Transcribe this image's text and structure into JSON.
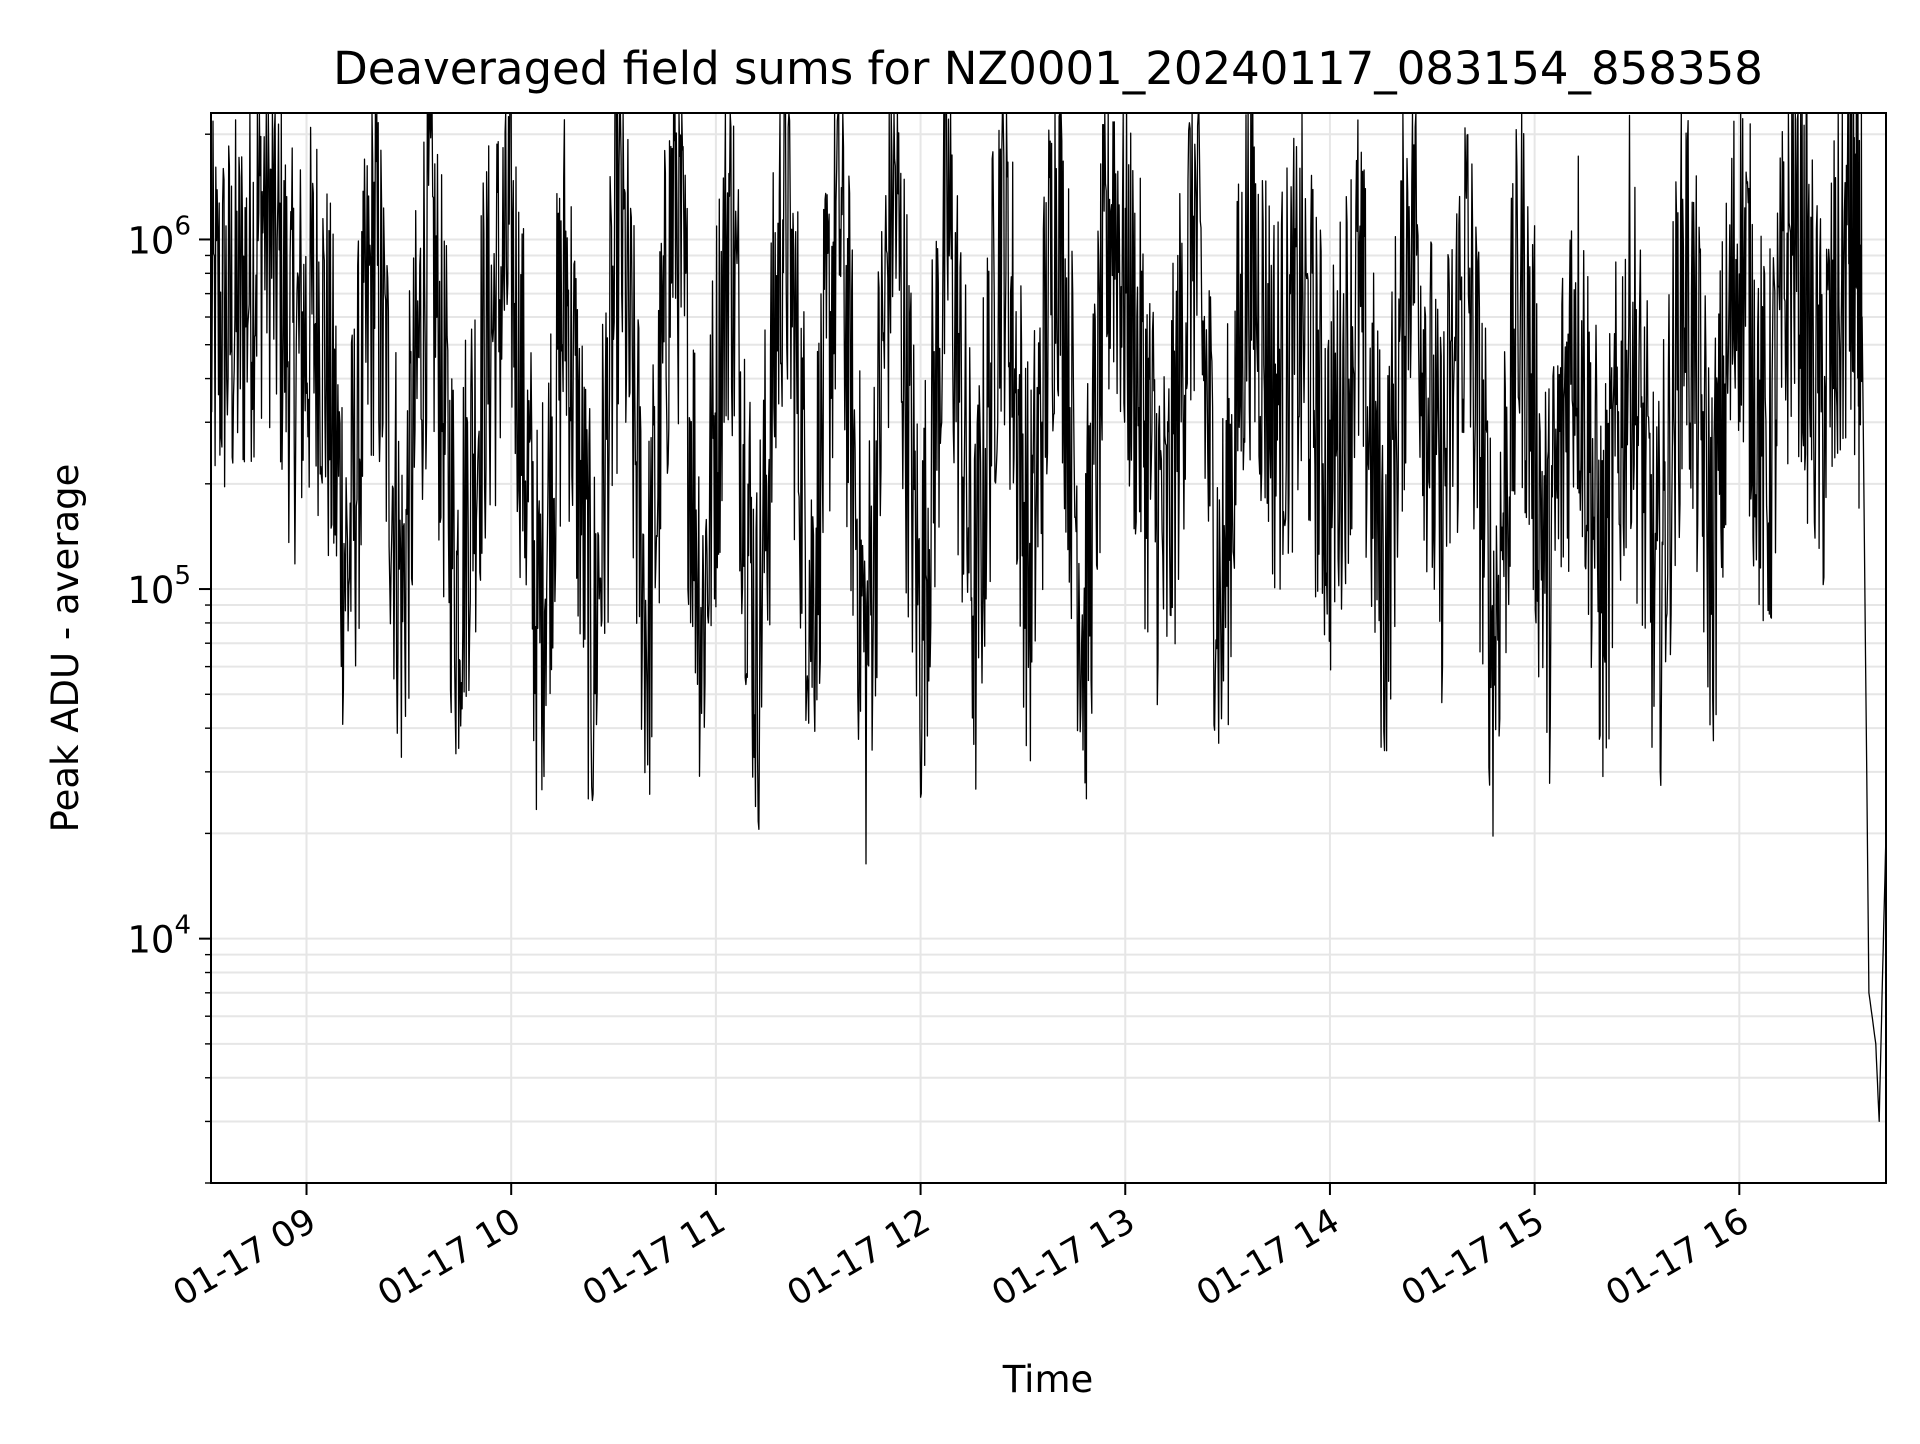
{
  "chart_data": {
    "type": "line",
    "title": "Deaveraged field sums for NZ0001_20240117_083154_858358",
    "xlabel": "Time",
    "ylabel": "Peak ADU - average",
    "y_scale": "log",
    "ylim": [
      2000,
      2300000
    ],
    "xlim": [
      "2024-01-17 08:32",
      "2024-01-17 16:43"
    ],
    "x_ticks": [
      "01-17 09",
      "01-17 10",
      "01-17 11",
      "01-17 12",
      "01-17 13",
      "01-17 14",
      "01-17 15",
      "01-17 16"
    ],
    "y_ticks": [
      {
        "base": "10",
        "exp": "4",
        "value": 10000
      },
      {
        "base": "10",
        "exp": "5",
        "value": 100000
      },
      {
        "base": "10",
        "exp": "6",
        "value": 1000000
      }
    ],
    "grid": true,
    "line_color": "#000000",
    "series": [
      {
        "x": [
          "2024-01-17 08:32",
          "2024-01-17 08:40",
          "2024-01-17 08:48",
          "2024-01-17 08:56",
          "2024-01-17 09:04",
          "2024-01-17 09:12",
          "2024-01-17 09:20",
          "2024-01-17 09:28",
          "2024-01-17 09:36",
          "2024-01-17 09:44",
          "2024-01-17 09:52",
          "2024-01-17 10:00",
          "2024-01-17 10:08",
          "2024-01-17 10:16",
          "2024-01-17 10:24",
          "2024-01-17 10:32",
          "2024-01-17 10:40",
          "2024-01-17 10:48",
          "2024-01-17 10:56",
          "2024-01-17 11:04",
          "2024-01-17 11:12",
          "2024-01-17 11:20",
          "2024-01-17 11:28",
          "2024-01-17 11:36",
          "2024-01-17 11:44",
          "2024-01-17 11:52",
          "2024-01-17 12:00",
          "2024-01-17 12:08",
          "2024-01-17 12:16",
          "2024-01-17 12:24",
          "2024-01-17 12:32",
          "2024-01-17 12:40",
          "2024-01-17 12:48",
          "2024-01-17 12:56",
          "2024-01-17 13:04",
          "2024-01-17 13:12",
          "2024-01-17 13:20",
          "2024-01-17 13:28",
          "2024-01-17 13:36",
          "2024-01-17 13:44",
          "2024-01-17 13:52",
          "2024-01-17 14:00",
          "2024-01-17 14:08",
          "2024-01-17 14:16",
          "2024-01-17 14:24",
          "2024-01-17 14:32",
          "2024-01-17 14:40",
          "2024-01-17 14:48",
          "2024-01-17 14:56",
          "2024-01-17 15:04",
          "2024-01-17 15:12",
          "2024-01-17 15:20",
          "2024-01-17 15:28",
          "2024-01-17 15:36",
          "2024-01-17 15:44",
          "2024-01-17 15:52",
          "2024-01-17 16:00",
          "2024-01-17 16:08",
          "2024-01-17 16:16",
          "2024-01-17 16:24",
          "2024-01-17 16:32",
          "2024-01-17 16:36",
          "2024-01-17 16:38",
          "2024-01-17 16:40",
          "2024-01-17 16:41",
          "2024-01-17 16:42",
          "2024-01-17 16:43"
        ],
        "y": [
          550000,
          600000,
          1300000,
          450000,
          650000,
          110000,
          1000000,
          90000,
          1200000,
          100000,
          450000,
          1000000,
          70000,
          800000,
          60000,
          1200000,
          70000,
          1600000,
          80000,
          1300000,
          60000,
          1500000,
          90000,
          1400000,
          55000,
          1700000,
          75000,
          1200000,
          80000,
          1400000,
          100000,
          1500000,
          70000,
          1450000,
          400000,
          120000,
          1300000,
          80000,
          1000000,
          350000,
          600000,
          200000,
          700000,
          100000,
          1500000,
          150000,
          900000,
          70000,
          800000,
          100000,
          700000,
          90000,
          600000,
          80000,
          900000,
          120000,
          1100000,
          200000,
          1200000,
          300000,
          1000000,
          600000,
          7000,
          5000,
          3000,
          8000,
          20000
        ]
      }
    ]
  }
}
